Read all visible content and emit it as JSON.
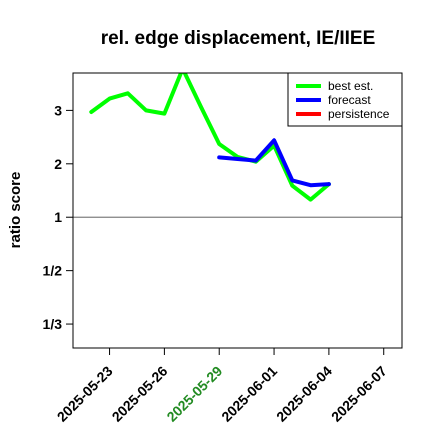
{
  "chart_data": {
    "type": "line",
    "title": "rel. edge displacement, IE/IIEE",
    "xlabel": "",
    "ylabel": "ratio score",
    "x_ticks": [
      "2025-05-23",
      "2025-05-26",
      "2025-05-29",
      "2025-06-01",
      "2025-06-04",
      "2025-06-07"
    ],
    "x_tick_colors": [
      "#000000",
      "#000000",
      "#228B22",
      "#000000",
      "#000000",
      "#000000"
    ],
    "xlim": [
      "2025-05-21",
      "2025-06-08"
    ],
    "y_scale": "reciprocal",
    "y_ticks": [
      {
        "value": "3",
        "label": "3"
      },
      {
        "value": "2",
        "label": "2"
      },
      {
        "value": "1",
        "label": "1"
      },
      {
        "value": "1/2",
        "label": "1/2"
      },
      {
        "value": "1/3",
        "label": "1/3"
      }
    ],
    "ylim": [
      0.29,
      3.7
    ],
    "reference_line": {
      "y": 1,
      "color": "#808080"
    },
    "legend": {
      "position": "top-right"
    },
    "series": [
      {
        "name": "best est.",
        "color": "#00ff00",
        "points": [
          {
            "x": "2025-05-22",
            "y": 2.97
          },
          {
            "x": "2025-05-23",
            "y": 3.22
          },
          {
            "x": "2025-05-24",
            "y": 3.32
          },
          {
            "x": "2025-05-25",
            "y": 3.0
          },
          {
            "x": "2025-05-26",
            "y": 2.94
          },
          {
            "x": "2025-05-27",
            "y": 3.78
          },
          {
            "x": "2025-05-28",
            "y": 3.07
          },
          {
            "x": "2025-05-29",
            "y": 2.37
          },
          {
            "x": "2025-05-30",
            "y": 2.13
          },
          {
            "x": "2025-05-31",
            "y": 2.04
          },
          {
            "x": "2025-06-01",
            "y": 2.34
          },
          {
            "x": "2025-06-02",
            "y": 1.59
          },
          {
            "x": "2025-06-03",
            "y": 1.33
          },
          {
            "x": "2025-06-04",
            "y": 1.62
          }
        ]
      },
      {
        "name": "forecast",
        "color": "#0000ff",
        "points": [
          {
            "x": "2025-05-29",
            "y": 2.12
          },
          {
            "x": "2025-05-30",
            "y": 2.09
          },
          {
            "x": "2025-05-31",
            "y": 2.06
          },
          {
            "x": "2025-06-01",
            "y": 2.44
          },
          {
            "x": "2025-06-02",
            "y": 1.69
          },
          {
            "x": "2025-06-03",
            "y": 1.6
          },
          {
            "x": "2025-06-04",
            "y": 1.62
          }
        ]
      },
      {
        "name": "persistence",
        "color": "#ff0000",
        "points": []
      }
    ]
  }
}
